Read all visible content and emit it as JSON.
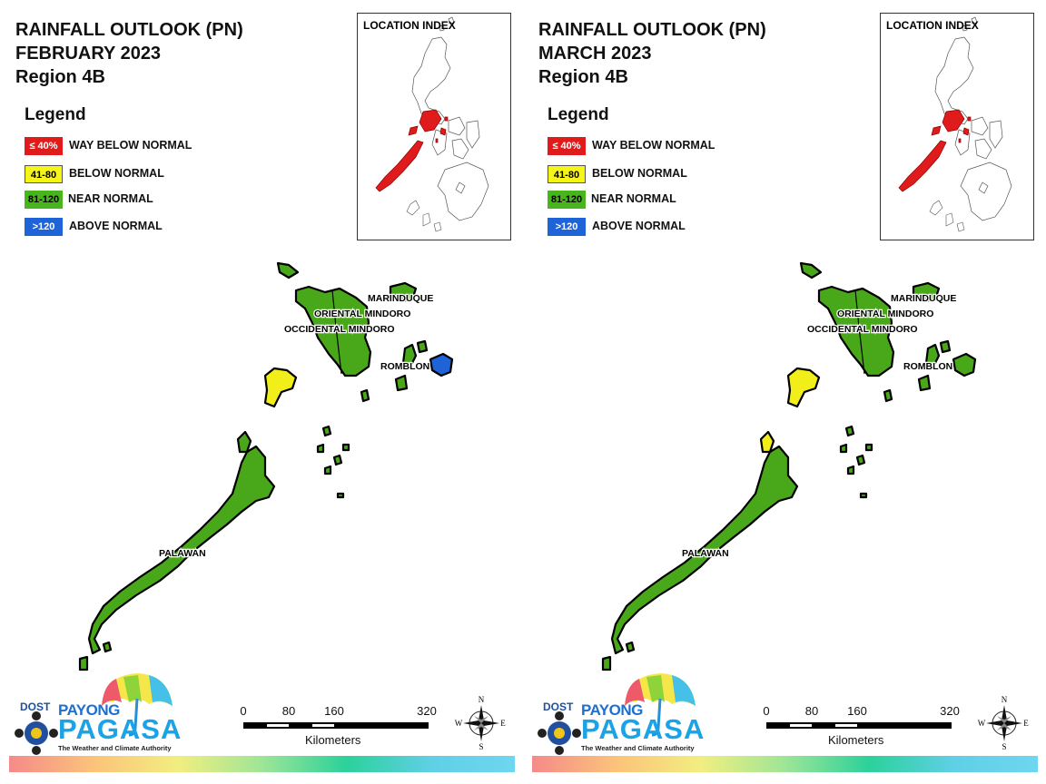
{
  "panels": [
    {
      "title_line1": "RAINFALL OUTLOOK (PN)",
      "title_line2": "FEBRUARY 2023",
      "title_line3": "Region 4B",
      "province_colors": {
        "mindoro": "#49a81a",
        "marinduque": "#49a81a",
        "romblon_west": "#49a81a",
        "romblon_east": "#1e64d8",
        "palawan_main": "#49a81a",
        "palawan_north_tip": "#49a81a",
        "calamian": "#f2ee19",
        "cuyo": "#49a81a"
      }
    },
    {
      "title_line1": "RAINFALL OUTLOOK (PN)",
      "title_line2": "MARCH 2023",
      "title_line3": "Region 4B",
      "province_colors": {
        "mindoro": "#49a81a",
        "marinduque": "#49a81a",
        "romblon_west": "#49a81a",
        "romblon_east": "#49a81a",
        "palawan_main": "#49a81a",
        "palawan_north_tip": "#f2ee19",
        "calamian": "#f2ee19",
        "cuyo": "#49a81a"
      }
    }
  ],
  "legend": {
    "title": "Legend",
    "items": [
      {
        "range": "≤ 40%",
        "label": "WAY BELOW NORMAL",
        "color": "#e01b1b",
        "text_color": "#ffffff"
      },
      {
        "range": "41-80",
        "label": "BELOW NORMAL",
        "color": "#f5f519",
        "text_color": "#000000"
      },
      {
        "range": "81-120",
        "label": "NEAR NORMAL",
        "color": "#49b51c",
        "text_color": "#000000"
      },
      {
        "range": ">120",
        "label": "ABOVE NORMAL",
        "color": "#1e64d8",
        "text_color": "#ffffff"
      }
    ]
  },
  "location_index": {
    "title": "LOCATION INDEX",
    "highlight_color": "#e01b1b"
  },
  "map_labels": {
    "marinduque": "MARINDUQUE",
    "oriental_mindoro": "ORIENTAL MINDORO",
    "occidental_mindoro": "OCCIDENTAL MINDORO",
    "romblon": "ROMBLON",
    "palawan": "PALAWAN"
  },
  "scale_bar": {
    "ticks": [
      "0",
      "80",
      "160",
      "320"
    ],
    "unit": "Kilometers"
  },
  "compass": {
    "n": "N",
    "e": "E",
    "s": "S",
    "w": "W"
  },
  "logo": {
    "dost": "DOST",
    "payong": "PAYONG",
    "pagasa": "PAGASA",
    "tagline": "The Weather and Climate Authority"
  }
}
